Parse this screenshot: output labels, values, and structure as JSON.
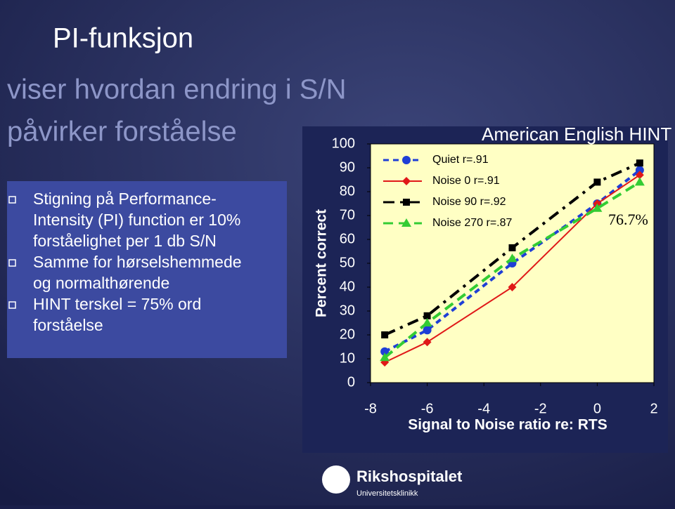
{
  "slide": {
    "title": "PI-funksjon",
    "subtitle_lines": [
      "viser hvordan endring i S/N",
      "påvirker forståelse"
    ],
    "bullets": [
      [
        "Stigning på Performance-",
        "Intensity (PI) function er 10%",
        "forståelighet per 1 db S/N"
      ],
      [
        "Samme for hørselshemmede",
        "og normalthørende"
      ],
      [
        "HINT terskel = 75% ord",
        "forståelse"
      ]
    ],
    "logo": {
      "name": "Rikshospitalet",
      "tagline": "Universitetsklinikk"
    }
  },
  "chart_data": {
    "type": "line",
    "title": "American English HINT",
    "x_label": "Signal to Noise ratio re: RTS",
    "y_label": "Percent correct",
    "annotation": "76.7%",
    "x": [
      -7.5,
      -6,
      -3,
      0,
      1.5
    ],
    "xlim": [
      -8,
      2
    ],
    "xticks": [
      -8,
      -6,
      -4,
      -2,
      0,
      2
    ],
    "ylim": [
      0,
      100
    ],
    "yticks": [
      0,
      10,
      20,
      30,
      40,
      50,
      60,
      70,
      80,
      90,
      100
    ],
    "legend": "upper left",
    "series": [
      {
        "name": "Quiet r=.91",
        "color": "#1f3fd6",
        "dash": "8 6",
        "marker": "circle",
        "values": [
          13,
          22,
          50,
          75,
          89
        ]
      },
      {
        "name": "Noise 0 r=.91",
        "color": "#e01818",
        "dash": "none",
        "marker": "diamond",
        "values": [
          8.5,
          17,
          40,
          75,
          87
        ]
      },
      {
        "name": "Noise 90 r=.92",
        "color": "#000000",
        "dash": "16 8 4 8",
        "marker": "square",
        "values": [
          20,
          28,
          56.5,
          84,
          92
        ]
      },
      {
        "name": "Noise 270 r=.87",
        "color": "#33cc33",
        "dash": "14 8",
        "marker": "triangle",
        "values": [
          10.5,
          25,
          52,
          73,
          84
        ]
      }
    ]
  }
}
